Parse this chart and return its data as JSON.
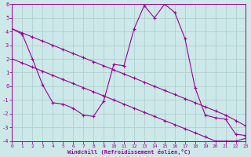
{
  "line_upper_diag_x": [
    0,
    1,
    2,
    3,
    4,
    5,
    6,
    7,
    8,
    9,
    10,
    11,
    12,
    13,
    14,
    15,
    16,
    17,
    18,
    19,
    20,
    21,
    22,
    23
  ],
  "line_upper_diag_y": [
    4.2,
    3.9,
    3.6,
    3.3,
    3.0,
    2.7,
    2.4,
    2.1,
    1.8,
    1.5,
    1.2,
    0.9,
    0.6,
    0.3,
    0.0,
    -0.3,
    -0.6,
    -0.9,
    -1.2,
    -1.5,
    -1.8,
    -2.1,
    -2.5,
    -2.9
  ],
  "line_lower_diag_x": [
    0,
    1,
    2,
    3,
    4,
    5,
    6,
    7,
    8,
    9,
    10,
    11,
    12,
    13,
    14,
    15,
    16,
    17,
    18,
    19,
    20,
    21,
    22,
    23
  ],
  "line_lower_diag_y": [
    2.0,
    1.7,
    1.4,
    1.1,
    0.8,
    0.5,
    0.2,
    -0.1,
    -0.4,
    -0.7,
    -1.0,
    -1.3,
    -1.6,
    -1.9,
    -2.2,
    -2.5,
    -2.8,
    -3.1,
    -3.4,
    -3.7,
    -4.0,
    -4.0,
    -4.0,
    -3.8
  ],
  "line_wave_x": [
    0,
    1,
    2,
    3,
    4,
    5,
    6,
    7,
    8,
    9,
    10,
    11,
    12,
    13,
    14,
    15,
    16,
    17,
    18,
    19,
    20,
    21,
    22,
    23
  ],
  "line_wave_y": [
    4.2,
    3.8,
    2.0,
    0.1,
    -1.2,
    -1.3,
    -1.6,
    -2.1,
    -2.2,
    -1.1,
    1.6,
    1.5,
    4.2,
    5.9,
    5.0,
    6.0,
    5.4,
    3.5,
    -0.1,
    -2.1,
    -2.3,
    -2.4,
    -3.5,
    -3.6
  ],
  "color": "#990099",
  "bg_color": "#cce8e8",
  "grid_color": "#aacccc",
  "xlabel": "Windchill (Refroidissement éolien,°C)",
  "xlim": [
    0,
    23
  ],
  "ylim": [
    -4,
    6
  ],
  "yticks": [
    -4,
    -3,
    -2,
    -1,
    0,
    1,
    2,
    3,
    4,
    5,
    6
  ],
  "xticks": [
    0,
    1,
    2,
    3,
    4,
    5,
    6,
    7,
    8,
    9,
    10,
    11,
    12,
    13,
    14,
    15,
    16,
    17,
    18,
    19,
    20,
    21,
    22,
    23
  ],
  "tick_fontsize": 4.5,
  "xlabel_fontsize": 5.0
}
